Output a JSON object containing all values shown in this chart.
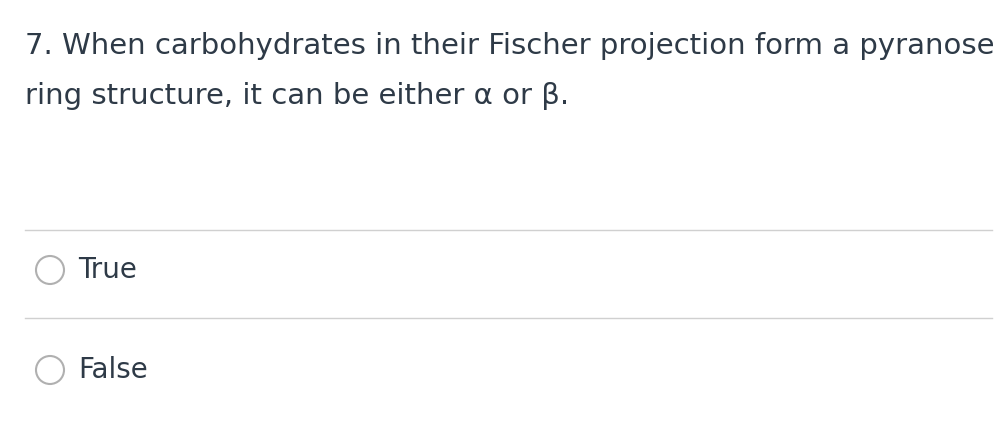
{
  "background_color": "#ffffff",
  "question_line1": "7. When carbohydrates in their Fischer projection form a pyranose",
  "question_line2": "ring structure, it can be either α or β.",
  "options": [
    "True",
    "False"
  ],
  "text_color": "#2e3a47",
  "line_color": "#d0d0d0",
  "circle_color": "#b0b0b0",
  "question_fontsize": 21,
  "option_fontsize": 20,
  "fig_width": 10.02,
  "fig_height": 4.28,
  "dpi": 100
}
